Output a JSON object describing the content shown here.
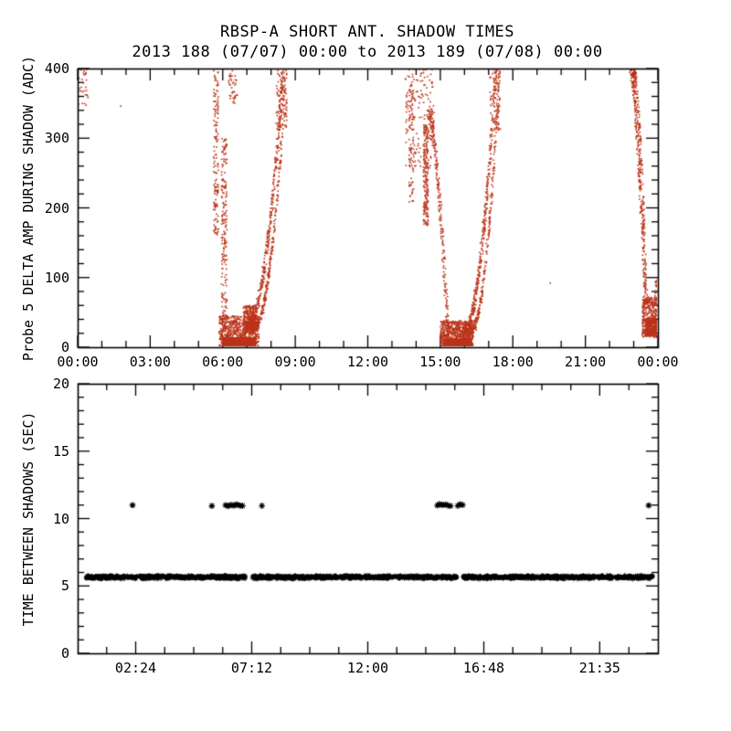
{
  "page": {
    "background": "#ffffff",
    "foreground": "#000000"
  },
  "chart_data": [
    {
      "type": "scatter",
      "panel": "top",
      "title": "RBSP-A SHORT ANT. SHADOW TIMES",
      "subtitle": "2013 188 (07/07) 00:00 to 2013 189 (07/08) 00:00",
      "ylabel": "Probe 5 DELTA AMP DURING SHADOW (ADC)",
      "marker": "dot",
      "marker_color": "#bb3319",
      "axis_color": "#000000",
      "grid": false,
      "xlim_hours": [
        0,
        24
      ],
      "ylim": [
        0,
        400
      ],
      "x_major_ticks": [
        {
          "hour": 0,
          "label": "00:00"
        },
        {
          "hour": 3,
          "label": "03:00"
        },
        {
          "hour": 6,
          "label": "06:00"
        },
        {
          "hour": 9,
          "label": "09:00"
        },
        {
          "hour": 12,
          "label": "12:00"
        },
        {
          "hour": 15,
          "label": "15:00"
        },
        {
          "hour": 18,
          "label": "18:00"
        },
        {
          "hour": 21,
          "label": "21:00"
        },
        {
          "hour": 24,
          "label": "00:00"
        }
      ],
      "x_minor_step_hours": 1,
      "y_major_ticks": [
        0,
        100,
        200,
        300,
        400
      ],
      "y_minor_step": 20,
      "events": [
        {
          "kind": "blob",
          "t": [
            0.02,
            0.45
          ],
          "y": [
            345,
            400
          ],
          "n": 30,
          "seed": 11
        },
        {
          "kind": "points",
          "pts": [
            [
              1.78,
              346
            ],
            [
              19.55,
              92
            ]
          ]
        },
        {
          "kind": "column",
          "t": [
            5.62,
            5.82
          ],
          "y": [
            160,
            400
          ],
          "n": 150,
          "seed": 21
        },
        {
          "kind": "column",
          "t": [
            5.95,
            6.18
          ],
          "y": [
            25,
            300
          ],
          "n": 200,
          "seed": 22
        },
        {
          "kind": "blob",
          "t": [
            6.25,
            6.6
          ],
          "y": [
            350,
            400
          ],
          "n": 40,
          "seed": 28
        },
        {
          "kind": "blob",
          "t": [
            5.85,
            7.5
          ],
          "y": [
            0,
            45
          ],
          "n": 700,
          "seed": 23
        },
        {
          "kind": "blob",
          "t": [
            6.0,
            7.35
          ],
          "y": [
            0,
            14
          ],
          "n": 600,
          "seed": 29
        },
        {
          "kind": "blob",
          "t": [
            6.85,
            7.4
          ],
          "y": [
            25,
            60
          ],
          "n": 220,
          "seed": 24
        },
        {
          "kind": "curve",
          "t0": 6.95,
          "t1": 8.5,
          "y0": 28,
          "y1": 400,
          "exp": 2.1,
          "n": 380,
          "jt": 0.05,
          "jy": 13,
          "seed": 25
        },
        {
          "kind": "curve",
          "t0": 7.18,
          "t1": 8.62,
          "y0": 26,
          "y1": 400,
          "exp": 2.3,
          "n": 280,
          "jt": 0.04,
          "jy": 10,
          "seed": 26
        },
        {
          "kind": "blob",
          "t": [
            8.2,
            8.65
          ],
          "y": [
            310,
            400
          ],
          "n": 100,
          "seed": 27
        },
        {
          "kind": "blob",
          "t": [
            13.55,
            14.75
          ],
          "y": [
            255,
            400
          ],
          "n": 170,
          "seed": 33
        },
        {
          "kind": "column",
          "t": [
            13.7,
            13.9
          ],
          "y": [
            200,
            390
          ],
          "n": 80,
          "seed": 31
        },
        {
          "kind": "column",
          "t": [
            14.3,
            14.5
          ],
          "y": [
            175,
            320
          ],
          "n": 200,
          "seed": 32
        },
        {
          "kind": "curve",
          "t0": 14.5,
          "t1": 15.35,
          "y0": 340,
          "y1": 5,
          "exp": 1.6,
          "n": 240,
          "jt": 0.06,
          "jy": 15,
          "seed": 34
        },
        {
          "kind": "blob",
          "t": [
            15.0,
            16.35
          ],
          "y": [
            0,
            38
          ],
          "n": 650,
          "seed": 35
        },
        {
          "kind": "blob",
          "t": [
            15.15,
            16.3
          ],
          "y": [
            0,
            12
          ],
          "n": 550,
          "seed": 39
        },
        {
          "kind": "curve",
          "t0": 15.95,
          "t1": 17.3,
          "y0": 20,
          "y1": 400,
          "exp": 2.0,
          "n": 380,
          "jt": 0.05,
          "jy": 13,
          "seed": 36
        },
        {
          "kind": "curve",
          "t0": 16.18,
          "t1": 17.45,
          "y0": 20,
          "y1": 400,
          "exp": 2.2,
          "n": 260,
          "jt": 0.04,
          "jy": 10,
          "seed": 37
        },
        {
          "kind": "blob",
          "t": [
            17.05,
            17.5
          ],
          "y": [
            310,
            400
          ],
          "n": 80,
          "seed": 38
        },
        {
          "kind": "curve",
          "t0": 22.88,
          "t1": 23.5,
          "y0": 400,
          "y1": 55,
          "exp": 1.5,
          "n": 260,
          "jt": 0.05,
          "jy": 14,
          "seed": 41
        },
        {
          "kind": "curve",
          "t0": 23.0,
          "t1": 23.55,
          "y0": 400,
          "y1": 60,
          "exp": 1.6,
          "n": 160,
          "jt": 0.04,
          "jy": 10,
          "seed": 45
        },
        {
          "kind": "blob",
          "t": [
            23.35,
            23.98
          ],
          "y": [
            14,
            72
          ],
          "n": 380,
          "seed": 42
        },
        {
          "kind": "blob",
          "t": [
            23.5,
            23.98
          ],
          "y": [
            16,
            42
          ],
          "n": 260,
          "seed": 44
        },
        {
          "kind": "blob",
          "t": [
            23.88,
            23.99
          ],
          "y": [
            60,
            96
          ],
          "n": 30,
          "seed": 43
        }
      ]
    },
    {
      "type": "scatter",
      "panel": "bottom",
      "ylabel": "TIME BETWEEN SHADOWS (SEC)",
      "marker": "asterisk",
      "marker_color": "#000000",
      "axis_color": "#000000",
      "grid": false,
      "xlim_hours": [
        0,
        24
      ],
      "ylim": [
        0,
        20
      ],
      "x_major_ticks": [
        {
          "hour": 2.4,
          "label": "02:24"
        },
        {
          "hour": 7.2,
          "label": "07:12"
        },
        {
          "hour": 12,
          "label": "12:00"
        },
        {
          "hour": 16.8,
          "label": "16:48"
        },
        {
          "hour": 21.593,
          "label": "21:35"
        }
      ],
      "x_minor_step_hours": 1.2,
      "y_major_ticks": [
        0,
        5,
        10,
        15,
        20
      ],
      "y_minor_step": 1,
      "band_segments": [
        {
          "t": [
            0.35,
            6.98
          ],
          "y_center": 5.65,
          "y_jitter": 0.15,
          "n": 460
        },
        {
          "t": [
            7.22,
            15.68
          ],
          "y_center": 5.65,
          "y_jitter": 0.15,
          "n": 580
        },
        {
          "t": [
            15.92,
            23.78
          ],
          "y_center": 5.65,
          "y_jitter": 0.15,
          "n": 540
        }
      ],
      "outliers": {
        "y": 11.0,
        "times": [
          2.27,
          5.55,
          6.12,
          6.22,
          6.3,
          6.38,
          6.46,
          6.54,
          6.62,
          6.72,
          6.82,
          7.62,
          14.88,
          14.96,
          15.04,
          15.12,
          15.22,
          15.32,
          15.42,
          15.72,
          15.82,
          15.92,
          23.62
        ]
      }
    }
  ]
}
